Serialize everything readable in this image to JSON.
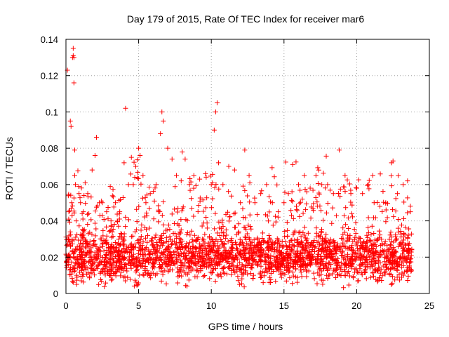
{
  "chart_data": {
    "type": "scatter",
    "title": "Day 179 of 2015, Rate Of TEC Index for receiver mar6",
    "xlabel": "GPS time / hours",
    "ylabel": "ROTI / TECUs",
    "xlim": [
      0,
      25
    ],
    "ylim": [
      0,
      0.14
    ],
    "x_ticks": [
      0,
      5,
      10,
      15,
      20,
      25
    ],
    "x_tick_labels": [
      "0",
      "5",
      "10",
      "15",
      "20",
      "25"
    ],
    "y_ticks": [
      0,
      0.02,
      0.04,
      0.06,
      0.08,
      0.1,
      0.12,
      0.14
    ],
    "y_tick_labels": [
      "0",
      "0.02",
      "0.04",
      "0.06",
      "0.08",
      "0.1",
      "0.12",
      "0.14"
    ],
    "grid": true,
    "marker": "+",
    "point_color": "#ff0000",
    "series": [
      {
        "name": "ROTI",
        "x": [
          0.1,
          0.15,
          0.2,
          0.3,
          0.35,
          0.4,
          0.45,
          0.5,
          0.5,
          0.55,
          0.55,
          0.6,
          0.6,
          0.65,
          0.7,
          0.9,
          1.0,
          1.2,
          1.5,
          1.8,
          2.0,
          2.1,
          2.3,
          2.5,
          2.8,
          3.1,
          3.4,
          3.7,
          4.0,
          4.1,
          4.3,
          4.5,
          4.8,
          5.0,
          5.1,
          5.3,
          5.5,
          5.8,
          6.2,
          6.5,
          6.6,
          6.7,
          7.0,
          7.3,
          7.6,
          8.0,
          8.2,
          8.5,
          8.8,
          9.2,
          9.6,
          10.0,
          10.2,
          10.3,
          10.4,
          10.5,
          10.8,
          11.2,
          11.6,
          12.0,
          12.3,
          12.6,
          13.0,
          13.4,
          13.8,
          14.2,
          14.6,
          15.0,
          15.3,
          15.6,
          16.0,
          16.4,
          16.8,
          17.2,
          17.6,
          18.0,
          18.4,
          18.8,
          19.2,
          19.6,
          20.0,
          20.4,
          20.8,
          21.2,
          21.6,
          22.0,
          22.4,
          22.5,
          22.8,
          23.2,
          23.5,
          23.7
        ],
        "y": [
          0.123,
          0.03,
          0.045,
          0.095,
          0.092,
          0.05,
          0.13,
          0.131,
          0.135,
          0.13,
          0.116,
          0.079,
          0.065,
          0.06,
          0.04,
          0.055,
          0.05,
          0.045,
          0.055,
          0.068,
          0.076,
          0.086,
          0.05,
          0.05,
          0.045,
          0.04,
          0.05,
          0.045,
          0.072,
          0.102,
          0.06,
          0.075,
          0.07,
          0.08,
          0.076,
          0.065,
          0.05,
          0.055,
          0.06,
          0.088,
          0.1,
          0.095,
          0.08,
          0.074,
          0.065,
          0.078,
          0.074,
          0.06,
          0.065,
          0.063,
          0.066,
          0.06,
          0.09,
          0.1,
          0.105,
          0.072,
          0.06,
          0.07,
          0.068,
          0.05,
          0.079,
          0.065,
          0.05,
          0.055,
          0.06,
          0.05,
          0.045,
          0.05,
          0.055,
          0.071,
          0.06,
          0.065,
          0.058,
          0.065,
          0.06,
          0.06,
          0.055,
          0.079,
          0.065,
          0.055,
          0.058,
          0.055,
          0.06,
          0.05,
          0.048,
          0.05,
          0.072,
          0.073,
          0.055,
          0.06,
          0.062,
          0.045
        ]
      }
    ],
    "dense_band": {
      "description_key": "baseline",
      "x_range": [
        0,
        23.8
      ],
      "y_center": 0.02,
      "y_spread": 0.012,
      "y_min": 0.003,
      "point_count": 2600
    }
  }
}
